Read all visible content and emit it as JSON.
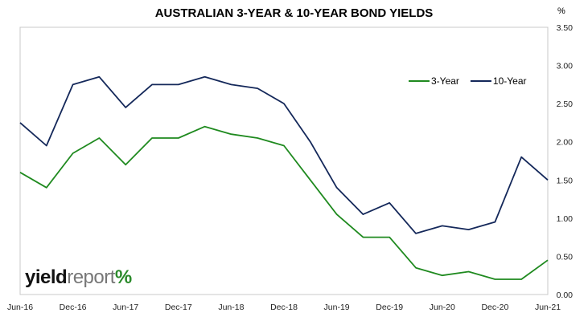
{
  "chart_data": {
    "type": "line",
    "title": "AUSTRALIAN 3-YEAR & 10-YEAR BOND YIELDS",
    "unit": "%",
    "x_tick_labels": [
      "Jun-16",
      "Dec-16",
      "Jun-17",
      "Dec-17",
      "Jun-18",
      "Dec-18",
      "Jun-19",
      "Dec-19",
      "Jun-20",
      "Dec-20",
      "Jun-21"
    ],
    "y_tick_labels": [
      "0.00",
      "0.50",
      "1.00",
      "1.50",
      "2.00",
      "2.50",
      "3.00",
      "3.50"
    ],
    "ylim": [
      0,
      3.5
    ],
    "xlim": [
      "2016-06",
      "2021-06"
    ],
    "grid": false,
    "legend_position": "top-right",
    "x": [
      "2016-06",
      "2016-09",
      "2016-12",
      "2017-03",
      "2017-06",
      "2017-09",
      "2017-12",
      "2018-03",
      "2018-06",
      "2018-09",
      "2018-12",
      "2019-03",
      "2019-06",
      "2019-09",
      "2019-12",
      "2020-03",
      "2020-06",
      "2020-09",
      "2020-12",
      "2021-03",
      "2021-06"
    ],
    "series": [
      {
        "name": "3-Year",
        "color": "#1f8a1f",
        "values": [
          1.6,
          1.4,
          1.85,
          2.05,
          1.7,
          2.05,
          2.05,
          2.2,
          2.1,
          2.05,
          1.95,
          1.5,
          1.05,
          0.75,
          0.75,
          0.35,
          0.25,
          0.3,
          0.2,
          0.2,
          0.45
        ]
      },
      {
        "name": "10-Year",
        "color": "#14285a",
        "values": [
          2.25,
          1.95,
          2.75,
          2.85,
          2.45,
          2.75,
          2.75,
          2.85,
          2.75,
          2.7,
          2.5,
          2.0,
          1.4,
          1.05,
          1.2,
          0.8,
          0.9,
          0.85,
          0.95,
          1.8,
          1.5
        ]
      }
    ]
  },
  "branding": {
    "text_bold": "yield",
    "text_light": "report",
    "symbol": "%"
  }
}
